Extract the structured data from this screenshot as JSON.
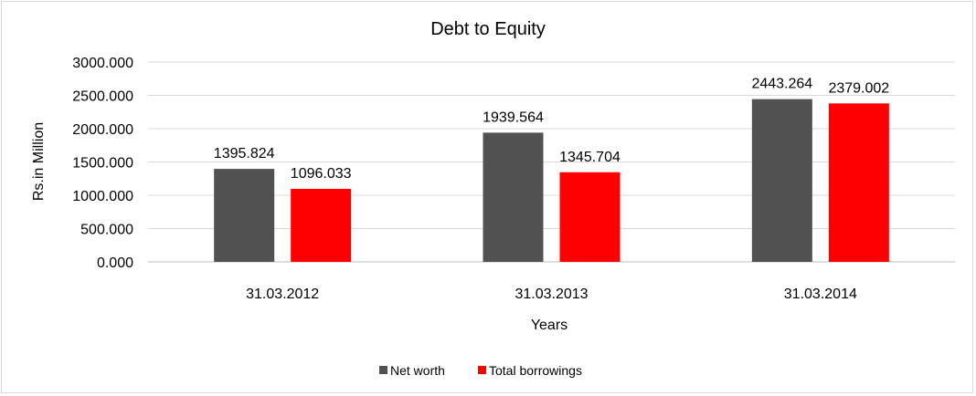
{
  "chart_data": {
    "type": "bar",
    "title": "Debt to Equity",
    "xlabel": "Years",
    "ylabel": "Rs.in Million",
    "categories": [
      "31.03.2012",
      "31.03.2013",
      "31.03.2014"
    ],
    "series": [
      {
        "name": "Net worth",
        "values": [
          1395.824,
          1939.564,
          2443.264
        ],
        "color": "#515151"
      },
      {
        "name": "Total borrowings",
        "values": [
          1096.033,
          1345.704,
          2379.002
        ],
        "color": "#ff0000"
      }
    ],
    "ylim": [
      0,
      3000
    ],
    "yticks": [
      "0.000",
      "500.000",
      "1000.000",
      "1500.000",
      "2000.000",
      "2500.000",
      "3000.000"
    ],
    "data_labels": [
      [
        "1395.824",
        "1939.564",
        "2443.264"
      ],
      [
        "1096.033",
        "1345.704",
        "2379.002"
      ]
    ],
    "grid": true,
    "legend_position": "bottom"
  }
}
